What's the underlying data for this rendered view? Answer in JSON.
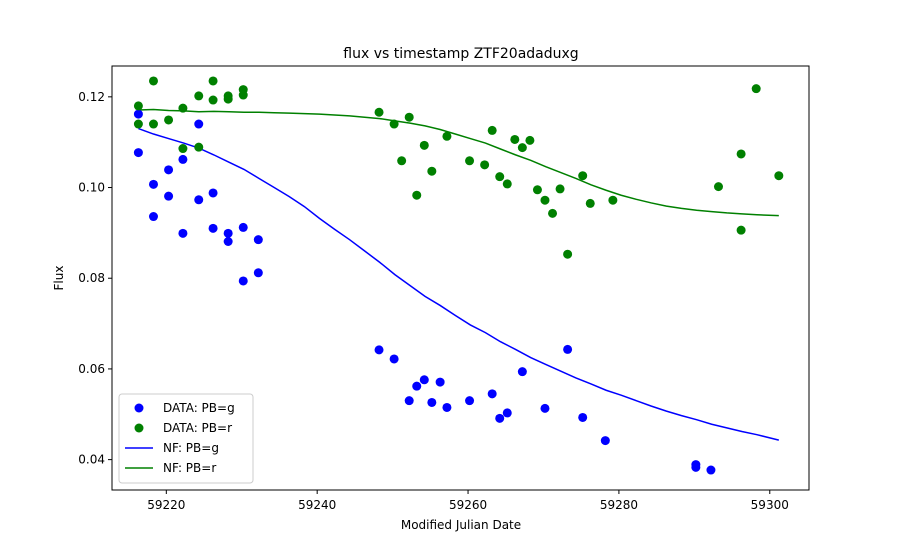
{
  "chart_data": {
    "type": "scatter",
    "title": "flux vs timestamp ZTF20adaduxg",
    "xlabel": "Modified Julian Date",
    "ylabel": "Flux",
    "xlim": [
      59212.8,
      59305.2
    ],
    "ylim": [
      0.0333,
      0.1268
    ],
    "xticks": [
      59220,
      59240,
      59260,
      59280,
      59300
    ],
    "yticks": [
      0.04,
      0.06,
      0.08,
      0.1,
      0.12
    ],
    "grid": false,
    "legend_position": "lower-left",
    "colors": {
      "g": "#0000ff",
      "r": "#008000"
    },
    "series": [
      {
        "name": "DATA: PB=g",
        "kind": "scatter",
        "color": "#0000ff",
        "points": [
          [
            59216.3,
            0.1162
          ],
          [
            59216.3,
            0.1077
          ],
          [
            59218.3,
            0.1007
          ],
          [
            59218.3,
            0.0936
          ],
          [
            59220.3,
            0.1039
          ],
          [
            59220.3,
            0.0981
          ],
          [
            59222.2,
            0.1062
          ],
          [
            59222.2,
            0.0899
          ],
          [
            59224.3,
            0.114
          ],
          [
            59224.3,
            0.0973
          ],
          [
            59226.2,
            0.0988
          ],
          [
            59226.2,
            0.091
          ],
          [
            59228.2,
            0.0899
          ],
          [
            59228.2,
            0.0881
          ],
          [
            59230.2,
            0.0912
          ],
          [
            59230.2,
            0.0794
          ],
          [
            59232.2,
            0.0885
          ],
          [
            59232.2,
            0.0812
          ],
          [
            59248.2,
            0.0642
          ],
          [
            59250.2,
            0.0622
          ],
          [
            59252.2,
            0.053
          ],
          [
            59253.2,
            0.0562
          ],
          [
            59254.2,
            0.0576
          ],
          [
            59255.2,
            0.0526
          ],
          [
            59256.3,
            0.0571
          ],
          [
            59257.2,
            0.0515
          ],
          [
            59260.2,
            0.053
          ],
          [
            59263.2,
            0.0545
          ],
          [
            59264.2,
            0.0491
          ],
          [
            59265.2,
            0.0503
          ],
          [
            59267.2,
            0.0594
          ],
          [
            59270.2,
            0.0513
          ],
          [
            59273.2,
            0.0643
          ],
          [
            59275.2,
            0.0493
          ],
          [
            59278.2,
            0.0442
          ],
          [
            59290.2,
            0.0389
          ],
          [
            59290.2,
            0.0383
          ],
          [
            59292.2,
            0.0377
          ]
        ]
      },
      {
        "name": "DATA: PB=r",
        "kind": "scatter",
        "color": "#008000",
        "points": [
          [
            59216.3,
            0.118
          ],
          [
            59216.3,
            0.114
          ],
          [
            59218.3,
            0.1235
          ],
          [
            59218.3,
            0.114
          ],
          [
            59220.3,
            0.1149
          ],
          [
            59222.2,
            0.1175
          ],
          [
            59222.2,
            0.1086
          ],
          [
            59224.3,
            0.1202
          ],
          [
            59224.3,
            0.1089
          ],
          [
            59226.2,
            0.1235
          ],
          [
            59226.2,
            0.1193
          ],
          [
            59228.2,
            0.1202
          ],
          [
            59228.2,
            0.1195
          ],
          [
            59230.2,
            0.1216
          ],
          [
            59230.2,
            0.1204
          ],
          [
            59248.2,
            0.1166
          ],
          [
            59250.2,
            0.114
          ],
          [
            59251.2,
            0.1059
          ],
          [
            59252.2,
            0.1155
          ],
          [
            59253.2,
            0.0983
          ],
          [
            59254.2,
            0.1093
          ],
          [
            59255.2,
            0.1036
          ],
          [
            59257.2,
            0.1113
          ],
          [
            59260.2,
            0.1059
          ],
          [
            59262.2,
            0.105
          ],
          [
            59263.2,
            0.1126
          ],
          [
            59264.2,
            0.1024
          ],
          [
            59265.2,
            0.1008
          ],
          [
            59266.2,
            0.1106
          ],
          [
            59267.2,
            0.1088
          ],
          [
            59268.2,
            0.1104
          ],
          [
            59269.2,
            0.0995
          ],
          [
            59270.2,
            0.0972
          ],
          [
            59271.2,
            0.0943
          ],
          [
            59272.2,
            0.0997
          ],
          [
            59273.2,
            0.0853
          ],
          [
            59275.2,
            0.1026
          ],
          [
            59276.2,
            0.0965
          ],
          [
            59279.2,
            0.0972
          ],
          [
            59293.2,
            0.1002
          ],
          [
            59296.2,
            0.1074
          ],
          [
            59296.2,
            0.0906
          ],
          [
            59298.2,
            0.1218
          ],
          [
            59301.2,
            0.1026
          ]
        ]
      },
      {
        "name": "NF: PB=g",
        "kind": "line",
        "color": "#0000ff",
        "points": [
          [
            59216.3,
            0.113
          ],
          [
            59218.3,
            0.1118
          ],
          [
            59220.3,
            0.1108
          ],
          [
            59222.3,
            0.1098
          ],
          [
            59224.3,
            0.1087
          ],
          [
            59226.3,
            0.1072
          ],
          [
            59228.3,
            0.1056
          ],
          [
            59230.3,
            0.104
          ],
          [
            59232.3,
            0.102
          ],
          [
            59234.3,
            0.1
          ],
          [
            59236.3,
            0.098
          ],
          [
            59238.3,
            0.0958
          ],
          [
            59240.3,
            0.0932
          ],
          [
            59242.3,
            0.0908
          ],
          [
            59244.3,
            0.0885
          ],
          [
            59246.3,
            0.086
          ],
          [
            59248.3,
            0.0835
          ],
          [
            59250.3,
            0.0808
          ],
          [
            59252.3,
            0.0784
          ],
          [
            59254.3,
            0.076
          ],
          [
            59256.3,
            0.074
          ],
          [
            59258.3,
            0.0718
          ],
          [
            59260.3,
            0.0697
          ],
          [
            59262.3,
            0.068
          ],
          [
            59264.3,
            0.066
          ],
          [
            59266.3,
            0.0643
          ],
          [
            59268.3,
            0.0625
          ],
          [
            59270.3,
            0.061
          ],
          [
            59272.3,
            0.0595
          ],
          [
            59274.3,
            0.058
          ],
          [
            59276.3,
            0.0567
          ],
          [
            59278.3,
            0.0553
          ],
          [
            59280.3,
            0.0542
          ],
          [
            59282.3,
            0.053
          ],
          [
            59284.3,
            0.0518
          ],
          [
            59286.3,
            0.0507
          ],
          [
            59288.3,
            0.0497
          ],
          [
            59290.3,
            0.0488
          ],
          [
            59292.3,
            0.0478
          ],
          [
            59294.3,
            0.047
          ],
          [
            59296.3,
            0.0462
          ],
          [
            59298.3,
            0.0455
          ],
          [
            59301.2,
            0.0443
          ]
        ]
      },
      {
        "name": "NF: PB=r",
        "kind": "line",
        "color": "#008000",
        "points": [
          [
            59216.3,
            0.1171
          ],
          [
            59218.3,
            0.1172
          ],
          [
            59220.3,
            0.117
          ],
          [
            59222.3,
            0.1169
          ],
          [
            59224.3,
            0.1167
          ],
          [
            59226.3,
            0.1168
          ],
          [
            59228.3,
            0.1167
          ],
          [
            59230.3,
            0.1166
          ],
          [
            59232.3,
            0.1166
          ],
          [
            59234.3,
            0.1165
          ],
          [
            59236.3,
            0.1164
          ],
          [
            59238.3,
            0.1163
          ],
          [
            59240.3,
            0.1162
          ],
          [
            59242.3,
            0.116
          ],
          [
            59244.3,
            0.1158
          ],
          [
            59246.3,
            0.1155
          ],
          [
            59248.3,
            0.1152
          ],
          [
            59250.3,
            0.1147
          ],
          [
            59252.3,
            0.1142
          ],
          [
            59254.3,
            0.1136
          ],
          [
            59256.3,
            0.1128
          ],
          [
            59258.3,
            0.1118
          ],
          [
            59260.3,
            0.1108
          ],
          [
            59262.3,
            0.1098
          ],
          [
            59264.3,
            0.1085
          ],
          [
            59266.3,
            0.1072
          ],
          [
            59268.3,
            0.106
          ],
          [
            59270.3,
            0.1046
          ],
          [
            59272.3,
            0.1033
          ],
          [
            59274.3,
            0.102
          ],
          [
            59276.3,
            0.1006
          ],
          [
            59278.3,
            0.0994
          ],
          [
            59280.3,
            0.0983
          ],
          [
            59282.3,
            0.0974
          ],
          [
            59284.3,
            0.0966
          ],
          [
            59286.3,
            0.0959
          ],
          [
            59288.3,
            0.0954
          ],
          [
            59290.3,
            0.095
          ],
          [
            59292.3,
            0.0947
          ],
          [
            59294.3,
            0.0944
          ],
          [
            59296.3,
            0.0942
          ],
          [
            59298.3,
            0.094
          ],
          [
            59301.2,
            0.0938
          ]
        ]
      }
    ]
  }
}
